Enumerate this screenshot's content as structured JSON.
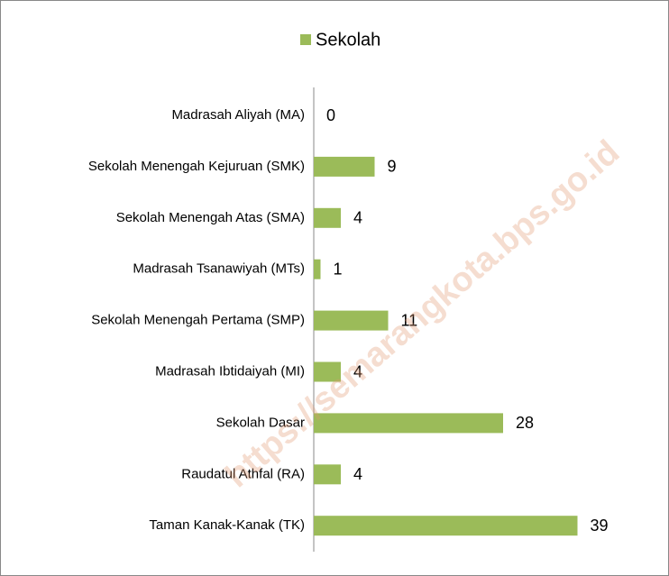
{
  "chart_data": {
    "type": "bar",
    "orientation": "horizontal",
    "categories": [
      "Madrasah Aliyah (MA)",
      "Sekolah Menengah Kejuruan (SMK)",
      "Sekolah Menengah Atas (SMA)",
      "Madrasah Tsanawiyah (MTs)",
      "Sekolah Menengah Pertama (SMP)",
      "Madrasah Ibtidaiyah (MI)",
      "Sekolah Dasar",
      "Raudatul Athfal (RA)",
      "Taman Kanak-Kanak (TK)"
    ],
    "series": [
      {
        "name": "Sekolah",
        "color": "#9bbb59",
        "values": [
          0,
          9,
          4,
          1,
          11,
          4,
          28,
          4,
          39
        ]
      }
    ],
    "xlim": [
      0,
      40
    ],
    "legend": "top",
    "watermark": "https://semarangkota.bps.go.id"
  }
}
